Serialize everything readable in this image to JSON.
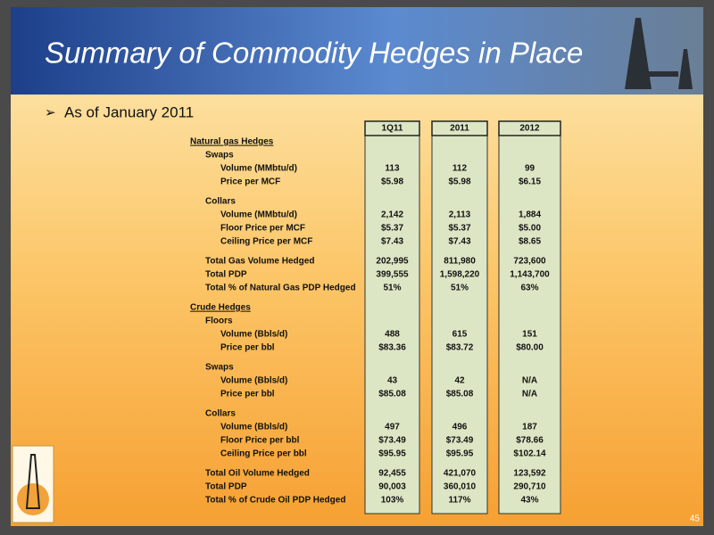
{
  "header": {
    "title": "Summary of Commodity Hedges in Place"
  },
  "bullet": "As of January 2011",
  "table": {
    "columns": [
      "1Q11",
      "2011",
      "2012"
    ],
    "sections": [
      {
        "title": "Natural gas Hedges",
        "groups": [
          {
            "title": "Swaps",
            "rows": [
              {
                "label": "Volume (MMbtu/d)",
                "values": [
                  "113",
                  "112",
                  "99"
                ]
              },
              {
                "label": "Price per MCF",
                "values": [
                  "$5.98",
                  "$5.98",
                  "$6.15"
                ]
              }
            ]
          },
          {
            "title": "Collars",
            "rows": [
              {
                "label": "Volume (MMbtu/d)",
                "values": [
                  "2,142",
                  "2,113",
                  "1,884"
                ]
              },
              {
                "label": "Floor Price per MCF",
                "values": [
                  "$5.37",
                  "$5.37",
                  "$5.00"
                ]
              },
              {
                "label": "Ceiling Price per MCF",
                "values": [
                  "$7.43",
                  "$7.43",
                  "$8.65"
                ]
              }
            ]
          }
        ],
        "totals": [
          {
            "label": "Total Gas Volume Hedged",
            "values": [
              "202,995",
              "811,980",
              "723,600"
            ]
          },
          {
            "label": "Total PDP",
            "values": [
              "399,555",
              "1,598,220",
              "1,143,700"
            ]
          },
          {
            "label": "Total % of Natural Gas PDP Hedged",
            "values": [
              "51%",
              "51%",
              "63%"
            ]
          }
        ]
      },
      {
        "title": "Crude Hedges",
        "groups": [
          {
            "title": "Floors",
            "rows": [
              {
                "label": "Volume (Bbls/d)",
                "values": [
                  "488",
                  "615",
                  "151"
                ]
              },
              {
                "label": "Price per bbl",
                "values": [
                  "$83.36",
                  "$83.72",
                  "$80.00"
                ]
              }
            ]
          },
          {
            "title": "Swaps",
            "rows": [
              {
                "label": "Volume (Bbls/d)",
                "values": [
                  "43",
                  "42",
                  "N/A"
                ]
              },
              {
                "label": "Price per bbl",
                "values": [
                  "$85.08",
                  "$85.08",
                  "N/A"
                ]
              }
            ]
          },
          {
            "title": "Collars",
            "rows": [
              {
                "label": "Volume (Bbls/d)",
                "values": [
                  "497",
                  "496",
                  "187"
                ]
              },
              {
                "label": "Floor Price per bbl",
                "values": [
                  "$73.49",
                  "$73.49",
                  "$78.66"
                ]
              },
              {
                "label": "Ceiling Price per bbl",
                "values": [
                  "$95.95",
                  "$95.95",
                  "$102.14"
                ]
              }
            ]
          }
        ],
        "totals": [
          {
            "label": "Total Oil Volume Hedged",
            "values": [
              "92,455",
              "421,070",
              "123,592"
            ]
          },
          {
            "label": "Total PDP",
            "values": [
              "90,003",
              "360,010",
              "290,710"
            ]
          },
          {
            "label": "Total % of Crude Oil PDP Hedged",
            "values": [
              "103%",
              "117%",
              "43%"
            ]
          }
        ]
      }
    ]
  },
  "footer": {
    "page_number": "45"
  }
}
